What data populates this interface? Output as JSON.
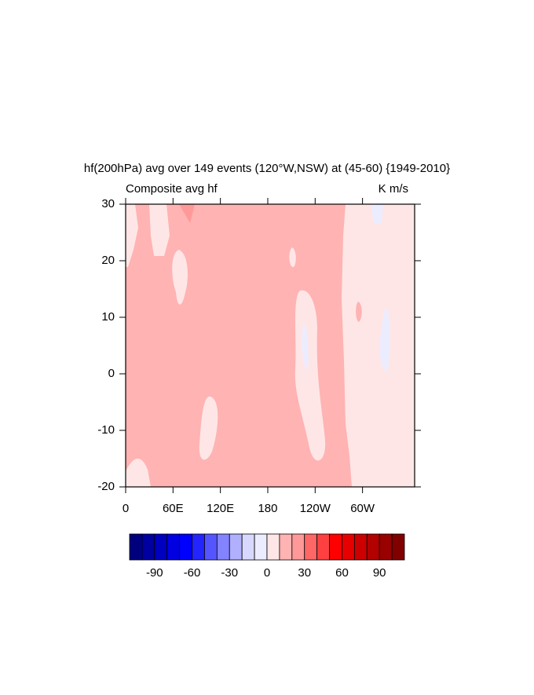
{
  "chart_data": {
    "type": "contour",
    "title": "hf(200hPa) avg over 149 events (120°W,NSW) at (45-60) {1949-2010}",
    "left_subtitle": "Composite avg hf",
    "right_subtitle": "K m/s",
    "xlim": [
      0,
      366
    ],
    "xticks": [
      0,
      {
        "value": 60,
        "label": "60E"
      },
      {
        "value": 120,
        "label": "120E"
      },
      180,
      {
        "value": 240,
        "label": "120W"
      },
      {
        "value": 300,
        "label": "60W"
      }
    ],
    "ylim": [
      -20,
      30
    ],
    "yticks": [
      -20,
      -10,
      0,
      10,
      20,
      30
    ],
    "levels": [
      -100,
      -90,
      -80,
      -70,
      -60,
      -50,
      -40,
      -30,
      -20,
      -10,
      0,
      10,
      20,
      30,
      40,
      50,
      60,
      70,
      80,
      90,
      100
    ],
    "colors": [
      "#00007f",
      "#0000a0",
      "#0000c0",
      "#0000e0",
      "#0000ff",
      "#2424ff",
      "#5555ff",
      "#8383ff",
      "#b0b0ff",
      "#d8d8ff",
      "#ececff",
      "#ffe6e6",
      "#ffb3b3",
      "#ff9999",
      "#ff6666",
      "#ff4040",
      "#ff0000",
      "#e60000",
      "#cc0000",
      "#b30000",
      "#990000",
      "#800000"
    ],
    "colorbar_ticks": [
      -90,
      -60,
      -30,
      0,
      30,
      60,
      90
    ]
  }
}
